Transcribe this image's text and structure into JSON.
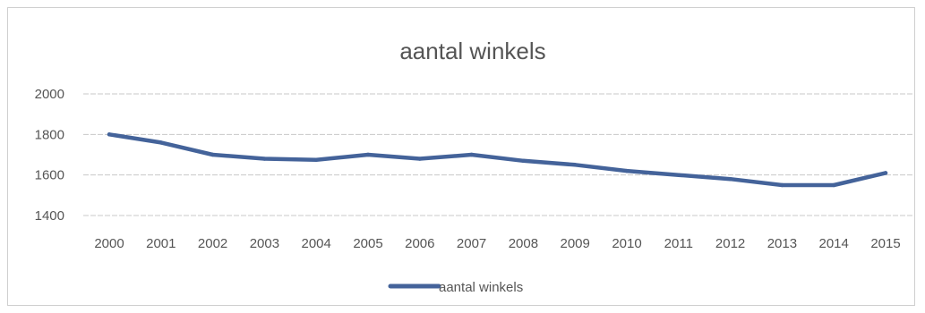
{
  "chart_data": {
    "type": "line",
    "title": "aantal winkels",
    "xlabel": "",
    "ylabel": "",
    "categories": [
      "2000",
      "2001",
      "2002",
      "2003",
      "2004",
      "2005",
      "2006",
      "2007",
      "2008",
      "2009",
      "2010",
      "2011",
      "2012",
      "2013",
      "2014",
      "2015"
    ],
    "series": [
      {
        "name": "aantal winkels",
        "values": [
          1800,
          1760,
          1700,
          1680,
          1675,
          1700,
          1680,
          1700,
          1670,
          1650,
          1620,
          1600,
          1580,
          1550,
          1550,
          1610
        ],
        "color": "#44639a"
      }
    ],
    "yticks": [
      "1400",
      "1600",
      "1800",
      "2000"
    ],
    "ylim": [
      1400,
      2000
    ],
    "grid": true,
    "legend_position": "bottom"
  }
}
